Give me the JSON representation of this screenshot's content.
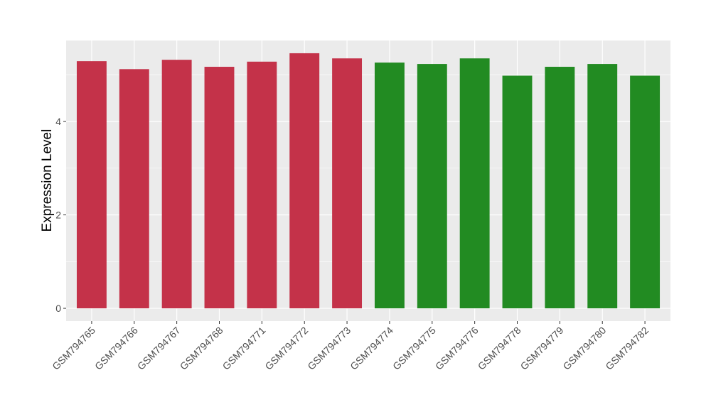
{
  "chart_data": {
    "type": "bar",
    "title": "",
    "xlabel": "",
    "ylabel": "Expression Level",
    "categories": [
      "GSM794765",
      "GSM794766",
      "GSM794767",
      "GSM794768",
      "GSM794771",
      "GSM794772",
      "GSM794773",
      "GSM794774",
      "GSM794775",
      "GSM794776",
      "GSM794778",
      "GSM794779",
      "GSM794780",
      "GSM794782"
    ],
    "values": [
      5.29,
      5.12,
      5.32,
      5.17,
      5.28,
      5.46,
      5.35,
      5.26,
      5.23,
      5.35,
      4.98,
      5.17,
      5.23,
      4.98
    ],
    "bar_colors": [
      "#C43249",
      "#C43249",
      "#C43249",
      "#C43249",
      "#C43249",
      "#C43249",
      "#C43249",
      "#228B22",
      "#228B22",
      "#228B22",
      "#228B22",
      "#228B22",
      "#228B22",
      "#228B22"
    ],
    "yticks": [
      0,
      2,
      4
    ],
    "ylim": [
      -0.273,
      5.733
    ],
    "grid": true,
    "panel_background": "#EBEBEB"
  }
}
